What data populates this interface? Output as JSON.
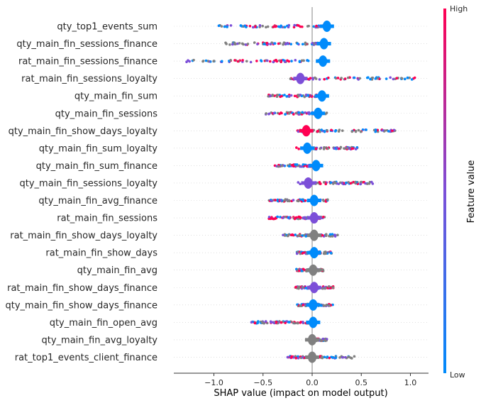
{
  "chart_data": {
    "type": "scatter",
    "subtype": "beeswarm",
    "xlabel": "SHAP value (impact on model output)",
    "xlim": [
      -1.4,
      1.18
    ],
    "xticks": [
      -1.0,
      -0.5,
      0.0,
      0.5,
      1.0
    ],
    "xtick_labels": [
      "−1.0",
      "−0.5",
      "0.0",
      "0.5",
      "1.0"
    ],
    "colorbar": {
      "label": "Feature value",
      "high_label": "High",
      "low_label": "Low",
      "high_color": "#ff0052",
      "low_color": "#008bfb",
      "missing_color": "#808080"
    },
    "features": [
      {
        "name": "qty_top1_events_sum",
        "min": -0.95,
        "max": 0.17,
        "peak": 0.15,
        "peak_color": "low",
        "mix": "mixed"
      },
      {
        "name": "qty_main_fin_sessions_finance",
        "min": -0.92,
        "max": 0.14,
        "peak": 0.12,
        "peak_color": "low",
        "mix": "mixed"
      },
      {
        "name": "rat_main_fin_sessions_finance",
        "min": -1.28,
        "max": 0.14,
        "peak": 0.11,
        "peak_color": "low",
        "mix": "mixed"
      },
      {
        "name": "rat_main_fin_sessions_loyalty",
        "min": -0.23,
        "max": 1.05,
        "peak": -0.12,
        "peak_color": "mid",
        "mix": "mixed"
      },
      {
        "name": "qty_main_fin_sum",
        "min": -0.45,
        "max": 0.13,
        "peak": 0.1,
        "peak_color": "low",
        "mix": "mixed"
      },
      {
        "name": "qty_main_fin_sessions",
        "min": -0.48,
        "max": 0.16,
        "peak": 0.06,
        "peak_color": "low",
        "mix": "mixed"
      },
      {
        "name": "qty_main_fin_show_days_loyalty",
        "min": -0.15,
        "max": 0.85,
        "peak": -0.06,
        "peak_color": "high",
        "mix": "mixed"
      },
      {
        "name": "qty_main_fin_sum_loyalty",
        "min": -0.16,
        "max": 0.47,
        "peak": -0.05,
        "peak_color": "low",
        "mix": "mixed"
      },
      {
        "name": "qty_main_fin_sum_finance",
        "min": -0.38,
        "max": 0.1,
        "peak": 0.04,
        "peak_color": "low",
        "mix": "mixed"
      },
      {
        "name": "qty_main_fin_sessions_loyalty",
        "min": -0.16,
        "max": 0.65,
        "peak": -0.04,
        "peak_color": "mid",
        "mix": "mixed"
      },
      {
        "name": "qty_main_fin_avg_finance",
        "min": -0.44,
        "max": 0.16,
        "peak": 0.02,
        "peak_color": "low",
        "mix": "mixed"
      },
      {
        "name": "rat_main_fin_sessions",
        "min": -0.46,
        "max": 0.13,
        "peak": 0.02,
        "peak_color": "mid",
        "mix": "mixed"
      },
      {
        "name": "rat_main_fin_show_days_loyalty",
        "min": -0.3,
        "max": 0.27,
        "peak": 0.02,
        "peak_color": "grey",
        "mix": "mixed"
      },
      {
        "name": "rat_main_fin_show_days",
        "min": -0.16,
        "max": 0.2,
        "peak": 0.02,
        "peak_color": "low",
        "mix": "mixed"
      },
      {
        "name": "qty_main_fin_avg",
        "min": -0.16,
        "max": 0.12,
        "peak": 0.01,
        "peak_color": "grey",
        "mix": "mixed"
      },
      {
        "name": "rat_main_fin_show_days_finance",
        "min": -0.18,
        "max": 0.22,
        "peak": 0.02,
        "peak_color": "mid",
        "mix": "mixed"
      },
      {
        "name": "qty_main_fin_show_days_finance",
        "min": -0.16,
        "max": 0.21,
        "peak": 0.01,
        "peak_color": "low",
        "mix": "mixed"
      },
      {
        "name": "qty_main_fin_open_avg",
        "min": -0.63,
        "max": 0.02,
        "peak": 0.01,
        "peak_color": "low",
        "mix": "mixed"
      },
      {
        "name": "qty_main_fin_avg_loyalty",
        "min": -0.04,
        "max": 0.15,
        "peak": 0.0,
        "peak_color": "grey",
        "mix": "mixed"
      },
      {
        "name": "rat_top1_events_client_finance",
        "min": -0.25,
        "max": 0.43,
        "peak": 0.0,
        "peak_color": "grey",
        "mix": "mixed"
      }
    ]
  }
}
